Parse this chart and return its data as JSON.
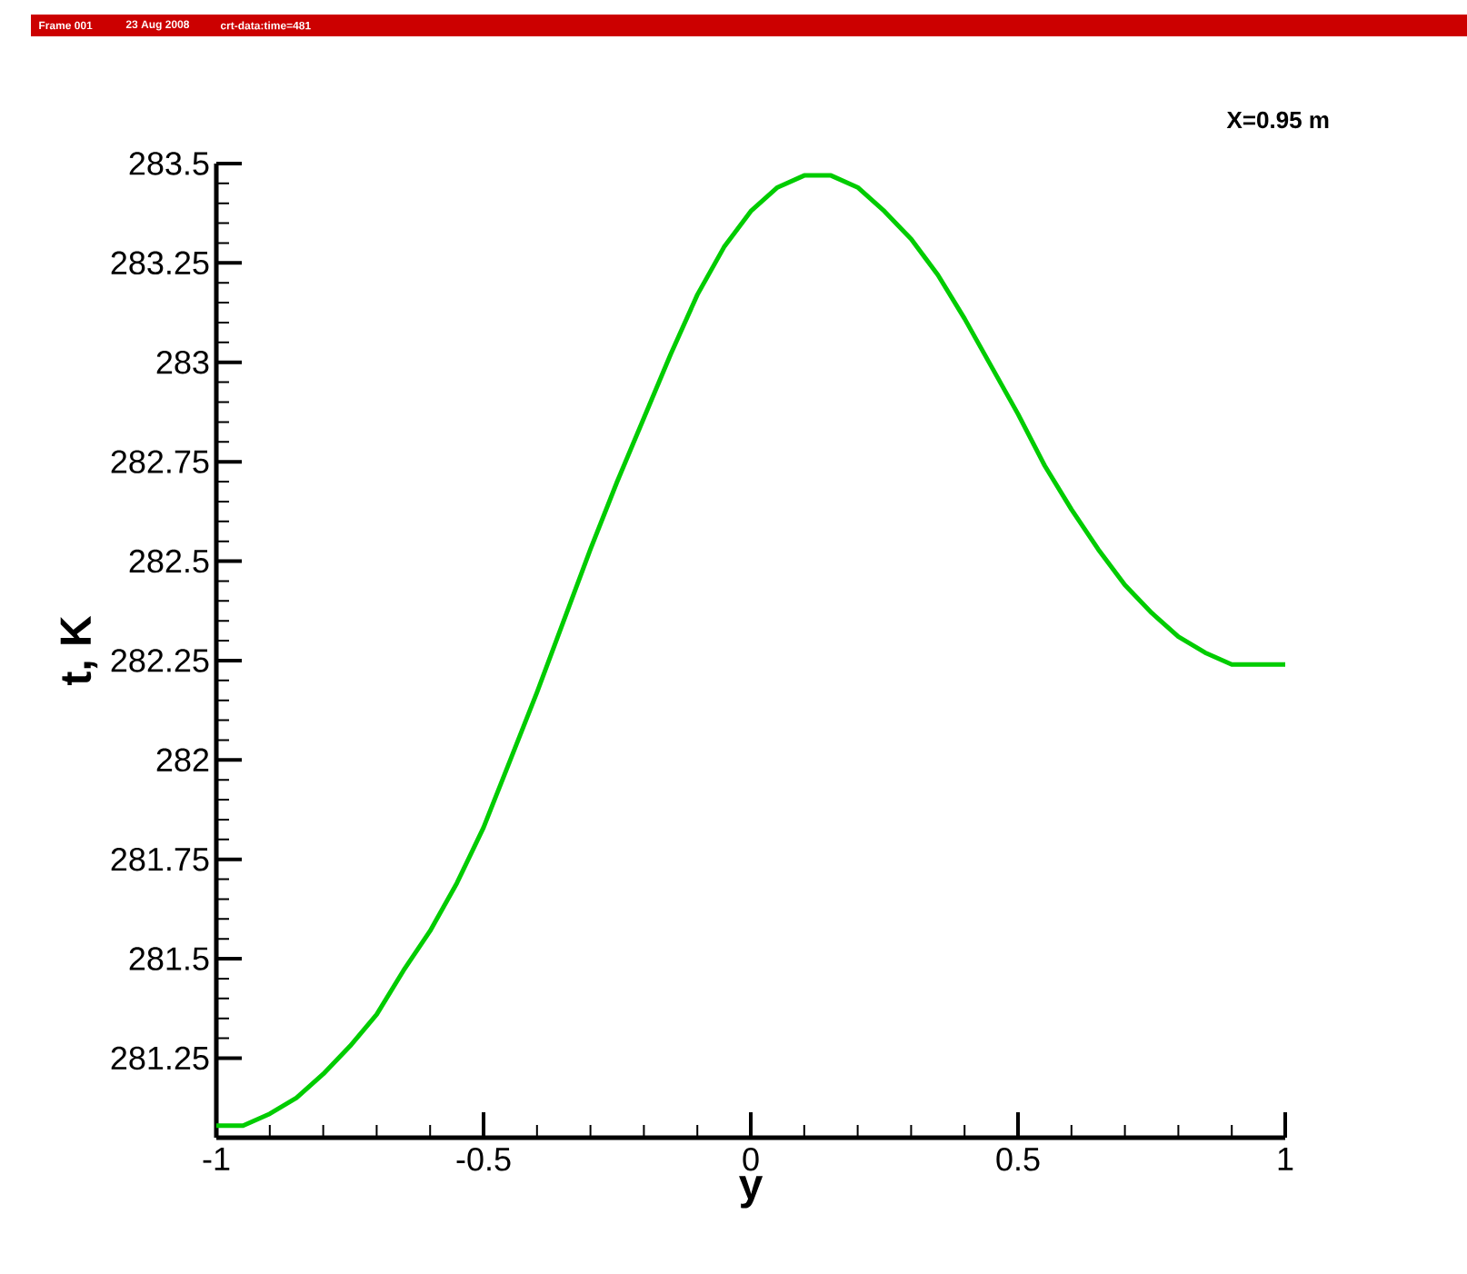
{
  "chart_data": {
    "type": "line",
    "xlabel": "y",
    "ylabel": "t, K",
    "annotations": [
      "X=0.95 m",
      "Frame 001",
      "23 Aug 2008",
      "crt-data:time=481"
    ],
    "xlim": [
      -1,
      1
    ],
    "xticks": [
      -1,
      -0.5,
      0,
      0.5,
      1
    ],
    "ylim": [
      281.05,
      283.5
    ],
    "yticks": [
      281.25,
      281.5,
      281.75,
      282,
      282.25,
      282.5,
      282.75,
      283,
      283.25,
      283.5
    ],
    "series": [
      {
        "color": "#00cc00",
        "x": [
          -1,
          -0.95,
          -0.9,
          -0.85,
          -0.8,
          -0.75,
          -0.7,
          -0.65,
          -0.6,
          -0.55,
          -0.5,
          -0.45,
          -0.4,
          -0.35,
          -0.3,
          -0.25,
          -0.2,
          -0.15,
          -0.1,
          -0.05,
          0,
          0.05,
          0.1,
          0.15,
          0.2,
          0.25,
          0.3,
          0.35,
          0.4,
          0.45,
          0.5,
          0.55,
          0.6,
          0.65,
          0.7,
          0.75,
          0.8,
          0.85,
          0.9,
          0.95,
          1
        ],
        "values": [
          281.08,
          281.08,
          281.11,
          281.15,
          281.21,
          281.28,
          281.36,
          281.47,
          281.57,
          281.69,
          281.83,
          282.0,
          282.17,
          282.35,
          282.53,
          282.7,
          282.86,
          283.02,
          283.17,
          283.29,
          283.38,
          283.44,
          283.47,
          283.47,
          283.44,
          283.38,
          283.31,
          283.22,
          283.11,
          282.99,
          282.87,
          282.74,
          282.63,
          282.53,
          282.44,
          282.37,
          282.31,
          282.27,
          282.24,
          282.24,
          282.24
        ]
      }
    ]
  }
}
